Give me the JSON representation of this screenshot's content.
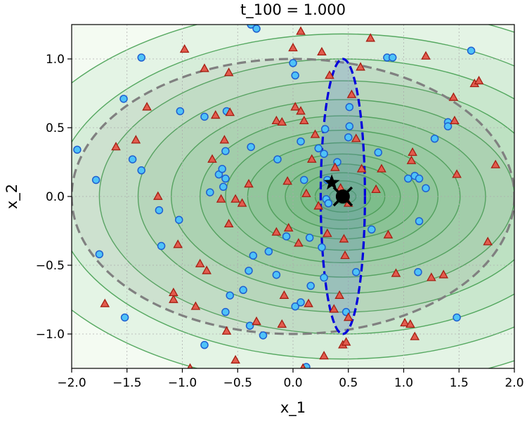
{
  "chart_data": {
    "type": "scatter",
    "title": "t_100 = 1.000",
    "xlabel": "x_1",
    "ylabel": "x_2",
    "xlim": [
      -2.0,
      2.0
    ],
    "ylim": [
      -1.25,
      1.25
    ],
    "xticks": [
      -2.0,
      -1.5,
      -1.0,
      -0.5,
      0.0,
      0.5,
      1.0,
      1.5,
      2.0
    ],
    "yticks": [
      -1.0,
      -0.5,
      0.0,
      0.5,
      1.0
    ],
    "xtick_labels": [
      "−2.0",
      "−1.5",
      "−1.0",
      "−0.5",
      "0.0",
      "0.5",
      "1.0",
      "1.5",
      "2.0"
    ],
    "ytick_labels": [
      "−1.0",
      "−0.5",
      "0.0",
      "0.5",
      "1.0"
    ],
    "grid": true,
    "colors": {
      "circle_fill": "#4fc3f7",
      "circle_edge": "#1f5fd0",
      "triangle_fill": "#e25c4e",
      "triangle_edge": "#a51e12",
      "contour_fill": "#2e9e44",
      "contour_line": "#3d9b4a",
      "wide_ellipse": "#808080",
      "narrow_ellipse": "#0000dd"
    },
    "contours": {
      "center": [
        0.45,
        0.0
      ],
      "sx_levels": [
        0.12,
        0.25,
        0.38,
        0.52,
        0.68,
        0.86,
        1.06,
        1.29,
        1.55,
        1.85,
        2.2,
        2.6,
        3.05
      ],
      "aspect": 2.2
    },
    "wide_ellipse": {
      "center": [
        0.0,
        0.0
      ],
      "rx": 2.0,
      "ry": 1.0
    },
    "narrow_ellipse": {
      "center": [
        0.45,
        0.0
      ],
      "rx": 0.2,
      "ry": 1.0
    },
    "star_marker": [
      0.35,
      0.1
    ],
    "circle_x_marker": [
      0.45,
      0.0
    ],
    "series": [
      {
        "name": "",
        "marker": "circle",
        "points": [
          [
            -1.95,
            0.34
          ],
          [
            -1.78,
            0.12
          ],
          [
            -1.75,
            -0.42
          ],
          [
            -1.53,
            0.71
          ],
          [
            -1.52,
            -0.88
          ],
          [
            -1.45,
            0.27
          ],
          [
            -1.37,
            1.01
          ],
          [
            -1.37,
            0.19
          ],
          [
            -1.21,
            -0.1
          ],
          [
            -1.19,
            -0.36
          ],
          [
            -1.02,
            0.62
          ],
          [
            -1.03,
            -0.17
          ],
          [
            -0.8,
            0.58
          ],
          [
            -0.8,
            -1.08
          ],
          [
            -0.75,
            0.03
          ],
          [
            -0.67,
            0.16
          ],
          [
            -0.64,
            0.2
          ],
          [
            -0.63,
            0.07
          ],
          [
            -0.6,
            0.62
          ],
          [
            -0.61,
            0.33
          ],
          [
            -0.61,
            0.13
          ],
          [
            -0.61,
            -0.84
          ],
          [
            -0.57,
            -0.72
          ],
          [
            -0.45,
            -0.68
          ],
          [
            -0.4,
            -0.54
          ],
          [
            -0.39,
            -0.94
          ],
          [
            -0.38,
            0.36
          ],
          [
            -0.36,
            -0.43
          ],
          [
            -0.27,
            -1.01
          ],
          [
            -0.22,
            -0.4
          ],
          [
            -0.15,
            -0.57
          ],
          [
            -0.14,
            0.27
          ],
          [
            -0.06,
            -0.29
          ],
          [
            0.0,
            0.97
          ],
          [
            0.02,
            0.88
          ],
          [
            0.02,
            -0.8
          ],
          [
            0.07,
            0.4
          ],
          [
            0.07,
            -0.77
          ],
          [
            0.1,
            0.12
          ],
          [
            0.15,
            -0.3
          ],
          [
            0.16,
            -0.65
          ],
          [
            0.23,
            0.35
          ],
          [
            0.28,
            0.31
          ],
          [
            0.26,
            -0.37
          ],
          [
            0.28,
            -0.59
          ],
          [
            0.29,
            0.49
          ],
          [
            0.3,
            -0.02
          ],
          [
            0.31,
            0.12
          ],
          [
            0.32,
            -0.05
          ],
          [
            0.4,
            0.25
          ],
          [
            0.48,
            -0.84
          ],
          [
            0.51,
            0.65
          ],
          [
            0.51,
            0.51
          ],
          [
            0.5,
            0.43
          ],
          [
            0.57,
            -0.55
          ],
          [
            0.71,
            -0.24
          ],
          [
            0.77,
            0.32
          ],
          [
            0.85,
            1.01
          ],
          [
            0.9,
            1.01
          ],
          [
            1.04,
            0.13
          ],
          [
            1.1,
            0.15
          ],
          [
            1.14,
            0.13
          ],
          [
            1.14,
            -0.18
          ],
          [
            1.13,
            -0.55
          ],
          [
            1.2,
            0.06
          ],
          [
            1.28,
            0.42
          ],
          [
            1.4,
            0.54
          ],
          [
            1.4,
            0.51
          ],
          [
            1.48,
            -0.88
          ],
          [
            1.61,
            1.06
          ],
          [
            -0.38,
            1.25
          ],
          [
            -0.33,
            1.22
          ],
          [
            0.12,
            -1.24
          ]
        ]
      },
      {
        "name": "",
        "marker": "triangle",
        "points": [
          [
            -1.7,
            -0.78
          ],
          [
            -1.6,
            0.36
          ],
          [
            -1.42,
            0.41
          ],
          [
            -1.32,
            0.65
          ],
          [
            -1.22,
            0.0
          ],
          [
            -1.08,
            -0.75
          ],
          [
            -1.08,
            -0.7
          ],
          [
            -1.04,
            -0.35
          ],
          [
            -0.98,
            1.07
          ],
          [
            -0.88,
            -0.8
          ],
          [
            -0.84,
            -0.49
          ],
          [
            -0.8,
            0.93
          ],
          [
            -0.78,
            -0.54
          ],
          [
            -0.73,
            0.27
          ],
          [
            -0.7,
            0.59
          ],
          [
            -0.65,
            -0.02
          ],
          [
            -0.62,
            0.41
          ],
          [
            -0.6,
            -0.98
          ],
          [
            -0.58,
            0.9
          ],
          [
            -0.58,
            -0.2
          ],
          [
            -0.57,
            0.61
          ],
          [
            -0.52,
            -0.02
          ],
          [
            -0.46,
            -0.05
          ],
          [
            -0.4,
            0.09
          ],
          [
            -0.33,
            -0.91
          ],
          [
            -0.15,
            -0.26
          ],
          [
            -0.15,
            0.55
          ],
          [
            -0.1,
            0.54
          ],
          [
            -0.1,
            -0.93
          ],
          [
            -0.08,
            -0.72
          ],
          [
            -0.05,
            0.11
          ],
          [
            -0.04,
            -0.23
          ],
          [
            0.0,
            1.08
          ],
          [
            0.02,
            0.65
          ],
          [
            0.05,
            -0.34
          ],
          [
            0.07,
            0.62
          ],
          [
            0.1,
            0.55
          ],
          [
            0.12,
            0.02
          ],
          [
            0.14,
            -0.78
          ],
          [
            0.17,
            0.27
          ],
          [
            0.2,
            0.45
          ],
          [
            0.23,
            -0.07
          ],
          [
            0.26,
            1.05
          ],
          [
            0.31,
            -0.27
          ],
          [
            0.33,
            0.88
          ],
          [
            0.37,
            -0.82
          ],
          [
            0.38,
            0.21
          ],
          [
            0.42,
            -0.72
          ],
          [
            0.45,
            -1.08
          ],
          [
            0.46,
            -0.31
          ],
          [
            0.47,
            -0.43
          ],
          [
            0.48,
            -1.06
          ],
          [
            0.5,
            -0.05
          ],
          [
            0.5,
            -0.88
          ],
          [
            0.53,
            0.74
          ],
          [
            0.57,
            0.42
          ],
          [
            0.61,
            0.94
          ],
          [
            0.62,
            0.2
          ],
          [
            0.7,
            1.15
          ],
          [
            0.75,
            0.05
          ],
          [
            0.8,
            0.2
          ],
          [
            0.86,
            -0.28
          ],
          [
            0.93,
            -0.56
          ],
          [
            1.01,
            -0.92
          ],
          [
            1.06,
            -0.93
          ],
          [
            1.07,
            0.26
          ],
          [
            1.08,
            0.32
          ],
          [
            1.1,
            -1.02
          ],
          [
            1.2,
            1.02
          ],
          [
            1.25,
            -0.59
          ],
          [
            1.36,
            -0.57
          ],
          [
            1.45,
            0.72
          ],
          [
            1.46,
            0.55
          ],
          [
            1.48,
            0.16
          ],
          [
            1.64,
            0.82
          ],
          [
            1.68,
            0.84
          ],
          [
            1.76,
            -0.33
          ],
          [
            1.83,
            0.23
          ],
          [
            0.43,
            0.06
          ],
          [
            0.07,
            1.2
          ],
          [
            -0.52,
            -1.19
          ],
          [
            0.28,
            -1.16
          ],
          [
            0.09,
            -1.25
          ],
          [
            -0.93,
            -1.25
          ]
        ]
      }
    ]
  }
}
